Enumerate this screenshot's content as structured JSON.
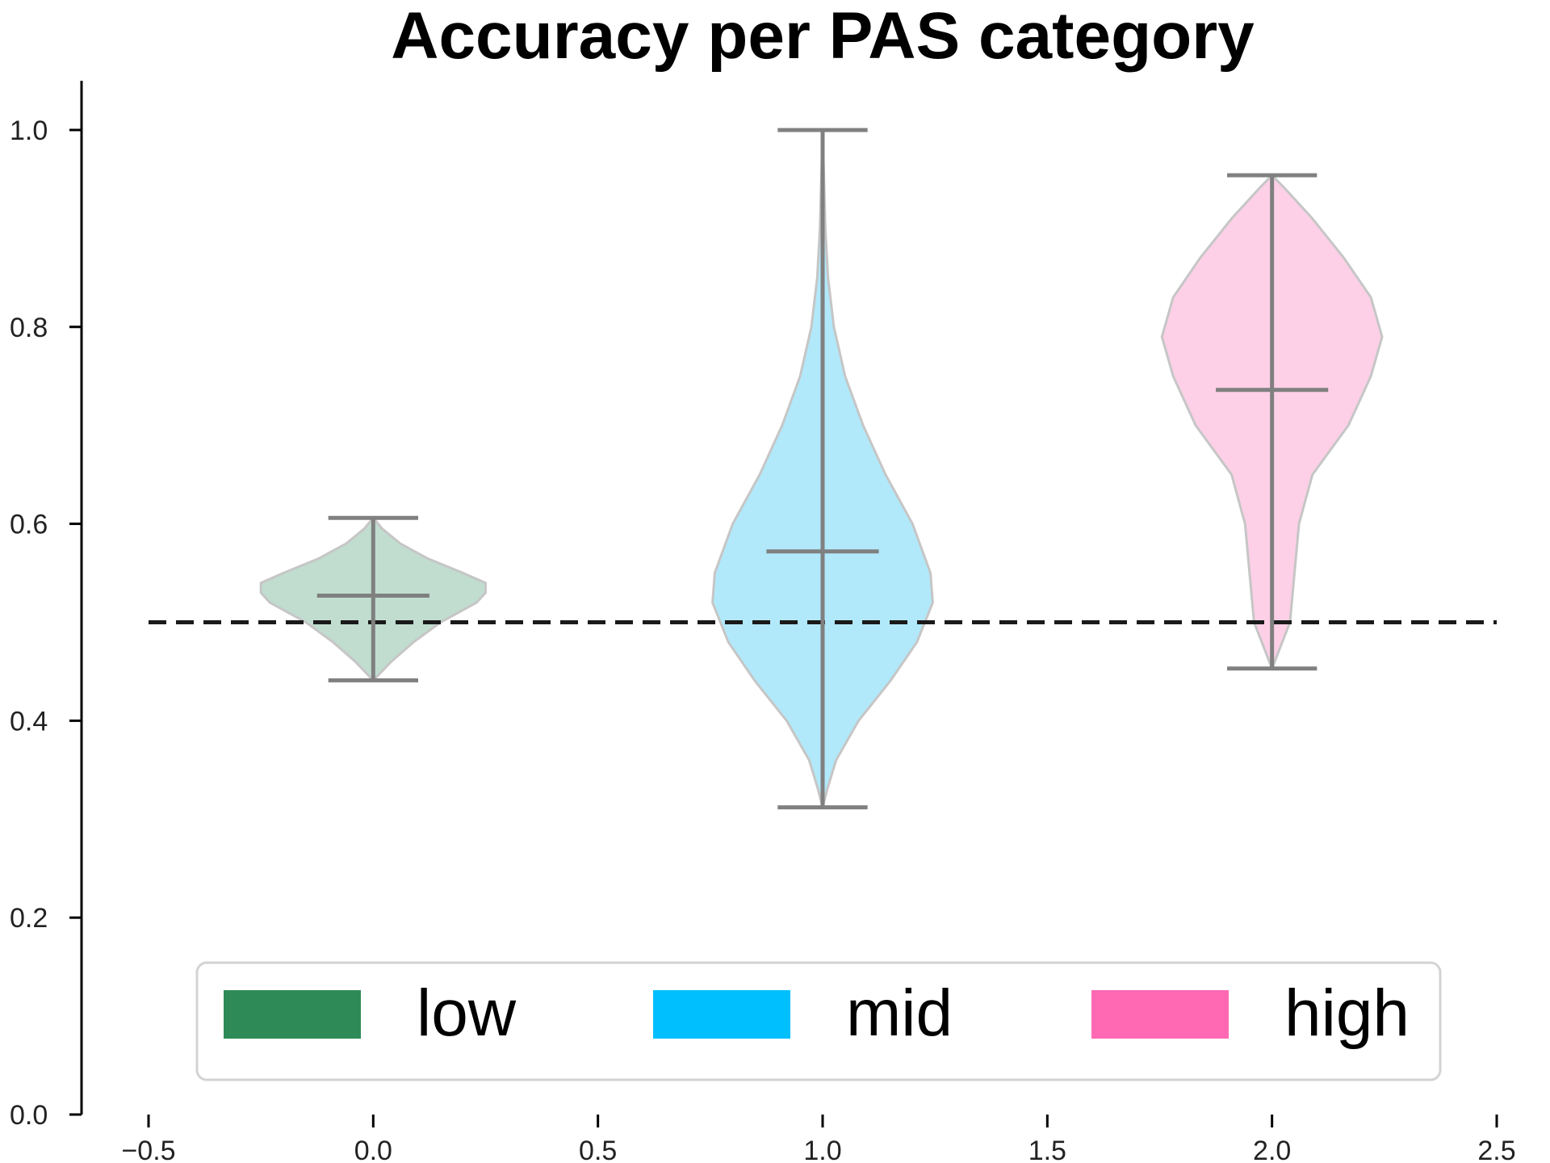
{
  "chart_data": {
    "type": "violin",
    "title": "Accuracy per PAS category",
    "xlabel": "",
    "ylabel": "",
    "xlim": [
      -0.5,
      2.5
    ],
    "ylim": [
      0.0,
      1.05
    ],
    "x_ticks": [
      -0.5,
      0.0,
      0.5,
      1.0,
      1.5,
      2.0,
      2.5
    ],
    "x_tick_labels": [
      "−0.5",
      "0.0",
      "0.5",
      "1.0",
      "1.5",
      "2.0",
      "2.5"
    ],
    "y_ticks": [
      0.0,
      0.2,
      0.4,
      0.6,
      0.8,
      1.0
    ],
    "y_tick_labels": [
      "0.0",
      "0.2",
      "0.4",
      "0.6",
      "0.8",
      "1.0"
    ],
    "grid": false,
    "reference_line": {
      "y": 0.5,
      "x_range": [
        -0.5,
        2.5
      ],
      "style": "dashed",
      "color": "#1a1a1a"
    },
    "legend": {
      "placement": "bottom-center",
      "entries": [
        {
          "label": "low",
          "color": "#2e8b57"
        },
        {
          "label": "mid",
          "color": "#00bfff"
        },
        {
          "label": "high",
          "color": "#ff69b4"
        }
      ]
    },
    "whisker_color": "#808080",
    "series": [
      {
        "name": "low",
        "position": 0.0,
        "fill_color": "#c0ddd0",
        "min": 0.441,
        "max": 0.606,
        "mean": 0.527,
        "profile": [
          [
            0.441,
            0.0
          ],
          [
            0.46,
            0.04
          ],
          [
            0.48,
            0.09
          ],
          [
            0.5,
            0.15
          ],
          [
            0.52,
            0.23
          ],
          [
            0.53,
            0.25
          ],
          [
            0.54,
            0.25
          ],
          [
            0.55,
            0.2
          ],
          [
            0.565,
            0.12
          ],
          [
            0.58,
            0.06
          ],
          [
            0.595,
            0.02
          ],
          [
            0.606,
            0.0
          ]
        ]
      },
      {
        "name": "mid",
        "position": 1.0,
        "fill_color": "#b1e9fb",
        "min": 0.312,
        "max": 1.0,
        "mean": 0.572,
        "profile": [
          [
            0.312,
            0.0
          ],
          [
            0.33,
            0.01
          ],
          [
            0.36,
            0.03
          ],
          [
            0.4,
            0.08
          ],
          [
            0.44,
            0.15
          ],
          [
            0.48,
            0.21
          ],
          [
            0.52,
            0.245
          ],
          [
            0.55,
            0.24
          ],
          [
            0.6,
            0.2
          ],
          [
            0.65,
            0.14
          ],
          [
            0.7,
            0.09
          ],
          [
            0.75,
            0.05
          ],
          [
            0.8,
            0.025
          ],
          [
            0.85,
            0.012
          ],
          [
            0.9,
            0.006
          ],
          [
            0.95,
            0.003
          ],
          [
            1.0,
            0.0
          ]
        ]
      },
      {
        "name": "high",
        "position": 2.0,
        "fill_color": "#fdd0e7",
        "min": 0.453,
        "max": 0.954,
        "mean": 0.736,
        "profile": [
          [
            0.453,
            0.0
          ],
          [
            0.5,
            0.04
          ],
          [
            0.55,
            0.05
          ],
          [
            0.6,
            0.06
          ],
          [
            0.65,
            0.09
          ],
          [
            0.7,
            0.17
          ],
          [
            0.75,
            0.22
          ],
          [
            0.79,
            0.245
          ],
          [
            0.83,
            0.22
          ],
          [
            0.87,
            0.16
          ],
          [
            0.91,
            0.09
          ],
          [
            0.94,
            0.03
          ],
          [
            0.954,
            0.0
          ]
        ]
      }
    ]
  }
}
